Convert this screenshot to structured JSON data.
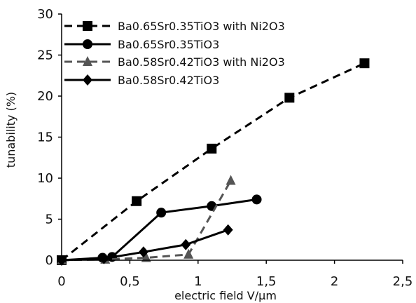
{
  "chart_data": {
    "type": "line",
    "title": "",
    "xlabel": "electric field V/µm",
    "ylabel": "tunability (%)",
    "xlim": [
      0,
      2.5
    ],
    "ylim": [
      0,
      30
    ],
    "xticks": [
      0,
      0.5,
      1,
      1.5,
      2,
      2.5
    ],
    "xtick_labels": [
      "0",
      "0,5",
      "1",
      "1,5",
      "2",
      "2,5"
    ],
    "yticks": [
      0,
      5,
      10,
      15,
      20,
      25,
      30
    ],
    "ytick_labels": [
      "0",
      "5",
      "10",
      "15",
      "20",
      "25",
      "30"
    ],
    "grid": false,
    "legend_position": "top-left",
    "series": [
      {
        "name": "Ba0.65Sr0.35TiO3 with Ni2O3",
        "marker": "square",
        "line": "dashed",
        "color": "#000000",
        "x": [
          0,
          0.55,
          1.1,
          1.67,
          2.22
        ],
        "y": [
          0,
          7.2,
          13.6,
          19.8,
          24
        ]
      },
      {
        "name": "Ba0.65Sr0.35TiO3",
        "marker": "circle",
        "line": "solid",
        "color": "#000000",
        "x": [
          0,
          0.3,
          0.37,
          0.73,
          1.1,
          1.43
        ],
        "y": [
          0,
          0.3,
          0.4,
          5.8,
          6.6,
          7.4
        ]
      },
      {
        "name": "Ba0.58Sr0.42TiO3 with Ni2O3",
        "marker": "triangle",
        "line": "dashed",
        "color": "#555555",
        "x": [
          0,
          0.32,
          0.62,
          0.93,
          1.24
        ],
        "y": [
          0,
          0.1,
          0.3,
          0.7,
          9.7
        ]
      },
      {
        "name": "Ba0.58Sr0.42TiO3",
        "marker": "diamond",
        "line": "solid",
        "color": "#000000",
        "x": [
          0,
          0.31,
          0.6,
          0.91,
          1.22
        ],
        "y": [
          0,
          0.2,
          1,
          1.9,
          3.7
        ]
      }
    ]
  }
}
